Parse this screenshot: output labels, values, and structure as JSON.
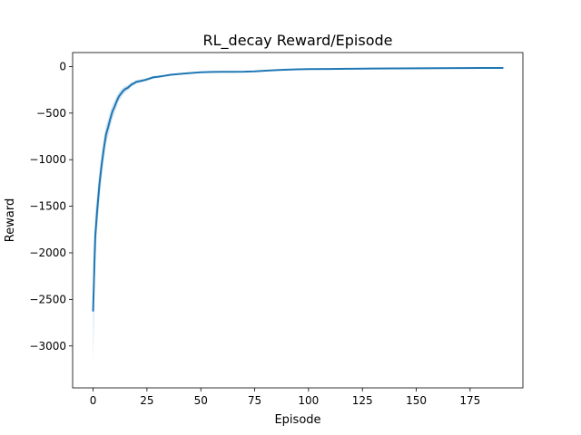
{
  "chart_data": {
    "type": "line",
    "title": "RL_decay Reward/Episode",
    "xlabel": "Episode",
    "ylabel": "Reward",
    "xlim": [
      -9.5,
      199.5
    ],
    "ylim": [
      -3450,
      150
    ],
    "xticks": [
      0,
      25,
      50,
      75,
      100,
      125,
      150,
      175
    ],
    "yticks": [
      0,
      -500,
      -1000,
      -1500,
      -2000,
      -2500,
      -3000
    ],
    "xtick_labels": [
      "0",
      "25",
      "50",
      "75",
      "100",
      "125",
      "150",
      "175"
    ],
    "ytick_labels": [
      "0",
      "−500",
      "−1000",
      "−1500",
      "−2000",
      "−2500",
      "−3000"
    ],
    "grid": false,
    "line_color": "#1f77b4",
    "band_color": "#1f77b4",
    "series": [
      {
        "x": [
          0,
          1,
          2,
          3,
          4,
          5,
          6,
          7,
          8,
          9,
          10,
          11,
          12,
          13,
          14,
          15,
          16,
          17,
          18,
          19,
          20,
          22,
          24,
          26,
          28,
          30,
          33,
          36,
          40,
          45,
          50,
          55,
          60,
          65,
          70,
          75,
          80,
          85,
          90,
          95,
          100,
          110,
          120,
          130,
          140,
          150,
          160,
          170,
          180,
          190
        ],
        "y": [
          -2620,
          -1820,
          -1520,
          -1250,
          -1050,
          -880,
          -730,
          -650,
          -560,
          -480,
          -430,
          -370,
          -320,
          -290,
          -260,
          -240,
          -230,
          -210,
          -190,
          -180,
          -165,
          -155,
          -145,
          -130,
          -115,
          -110,
          -100,
          -88,
          -80,
          -70,
          -62,
          -58,
          -57,
          -57,
          -56,
          -52,
          -44,
          -38,
          -34,
          -30,
          -28,
          -26,
          -24,
          -22,
          -20,
          -19,
          -18,
          -17,
          -16,
          -16
        ],
        "lower": [
          -3200,
          -2100,
          -1720,
          -1420,
          -1200,
          -1000,
          -840,
          -750,
          -650,
          -560,
          -500,
          -430,
          -370,
          -335,
          -300,
          -275,
          -260,
          -238,
          -215,
          -203,
          -186,
          -174,
          -162,
          -146,
          -130,
          -124,
          -112,
          -98,
          -89,
          -78,
          -69,
          -64,
          -63,
          -63,
          -62,
          -58,
          -50,
          -43,
          -39,
          -35,
          -33,
          -31,
          -29,
          -27,
          -25,
          -24,
          -23,
          -22,
          -21,
          -21
        ],
        "upper": [
          -2100,
          -1560,
          -1330,
          -1090,
          -910,
          -760,
          -630,
          -560,
          -480,
          -410,
          -365,
          -315,
          -275,
          -250,
          -225,
          -208,
          -202,
          -184,
          -167,
          -159,
          -146,
          -138,
          -130,
          -116,
          -102,
          -98,
          -89,
          -79,
          -72,
          -63,
          -56,
          -52,
          -51,
          -51,
          -50,
          -47,
          -39,
          -34,
          -30,
          -26,
          -24,
          -22,
          -20,
          -18,
          -16,
          -15,
          -14,
          -13,
          -12,
          -12
        ]
      }
    ]
  }
}
